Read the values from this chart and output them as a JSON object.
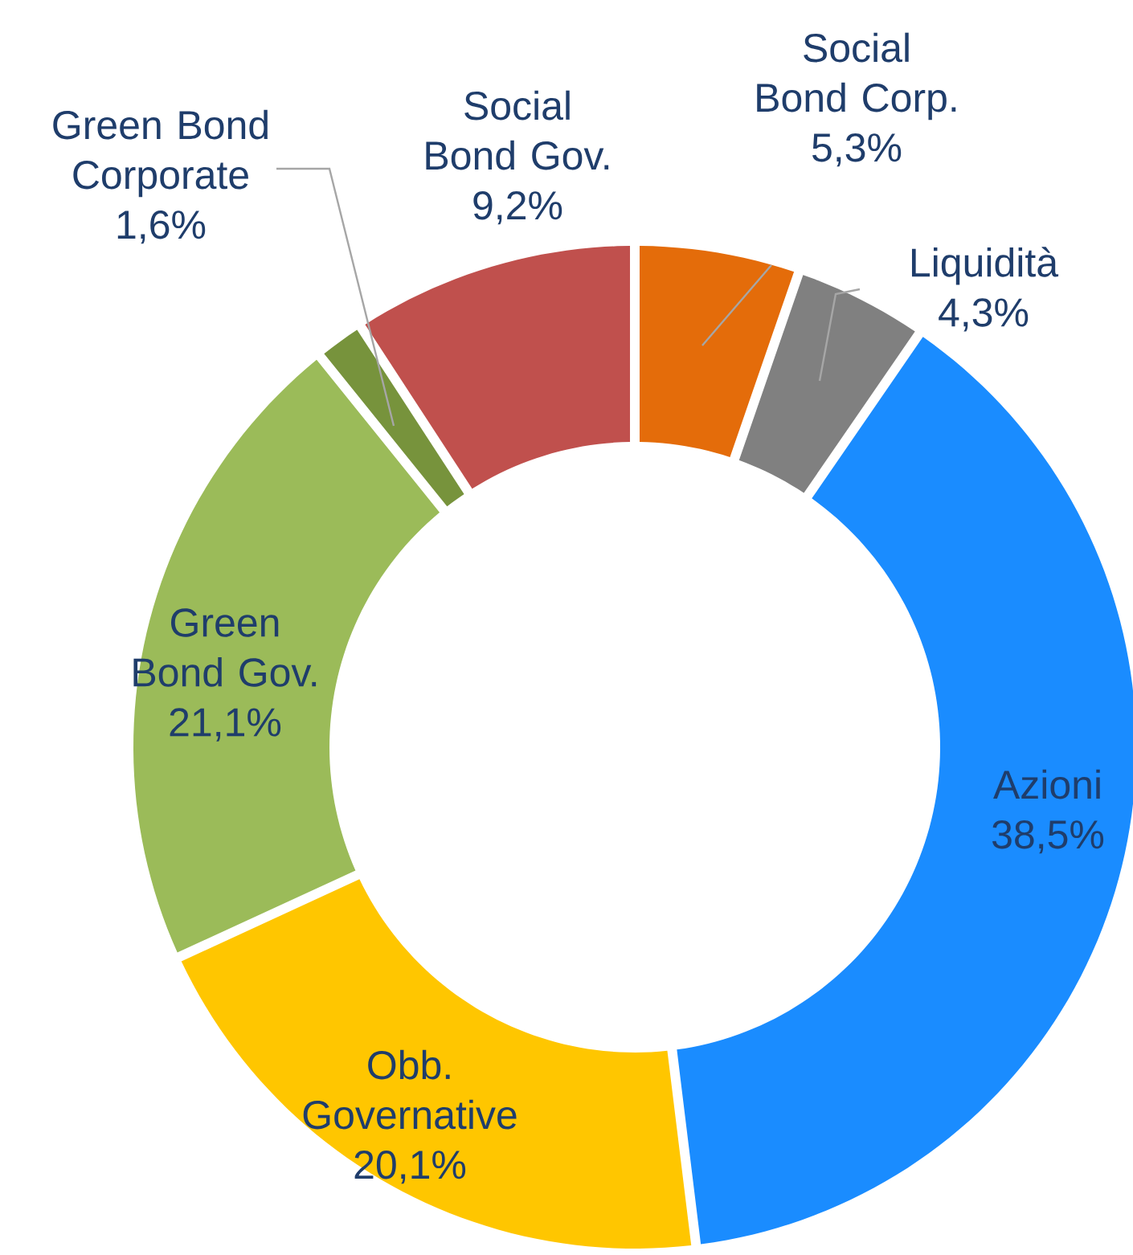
{
  "chart_data": {
    "type": "donut",
    "categories": [
      "Social Bond Corp.",
      "Liquidità",
      "Azioni",
      "Obb. Governative",
      "Green Bond Gov.",
      "Green Bond Corporate",
      "Social Bond Gov."
    ],
    "values": [
      5.3,
      4.3,
      38.5,
      20.1,
      21.1,
      1.6,
      9.2
    ],
    "value_labels": [
      "5,3%",
      "4,3%",
      "38,5%",
      "20,1%",
      "21,1%",
      "1,6%",
      "9,2%"
    ],
    "colors": [
      "#e46c0a",
      "#808080",
      "#1a8cff",
      "#ffc600",
      "#9bbb59",
      "#77933c",
      "#c0504d"
    ]
  }
}
